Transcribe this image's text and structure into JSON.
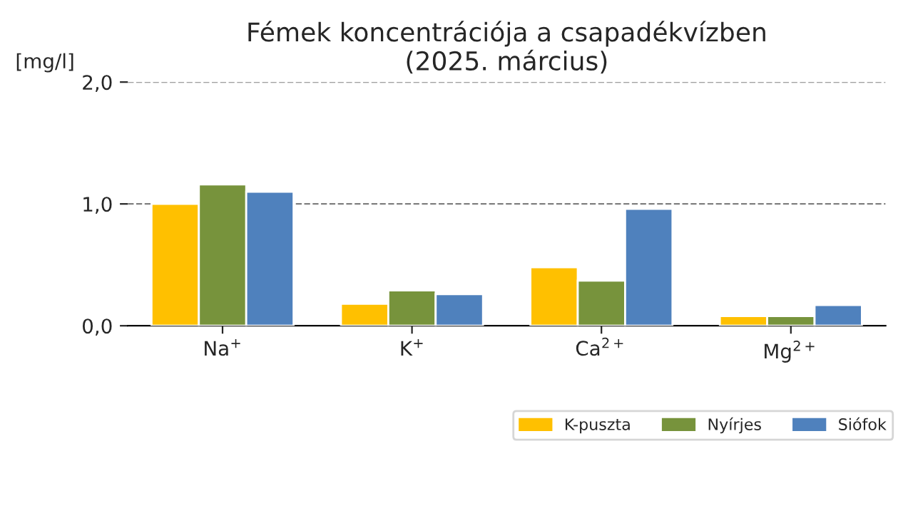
{
  "chart_data": {
    "type": "bar",
    "title": "Fémek koncentrációja a csapadékvízben\n(2025. március)",
    "ylabel": "[mg/l]",
    "categories": [
      "Na$^{+}$",
      "K$^{+}$",
      "Ca$^{2+}$",
      "Mg$^{2+}$"
    ],
    "series": [
      {
        "name": "K-puszta",
        "color": "#ffc000",
        "values": [
          1.0,
          0.18,
          0.48,
          0.08
        ]
      },
      {
        "name": "Nyírjes",
        "color": "#77933c",
        "values": [
          1.16,
          0.29,
          0.37,
          0.08
        ]
      },
      {
        "name": "Siófok",
        "color": "#4f81bd",
        "values": [
          1.1,
          0.26,
          0.96,
          0.17
        ]
      }
    ],
    "ylim": [
      0,
      2
    ],
    "yticks": [
      {
        "value": 0,
        "label": "0,0"
      },
      {
        "value": 1,
        "label": "1,0"
      },
      {
        "value": 2,
        "label": "2,0"
      }
    ],
    "grid": "y",
    "legend": "bottom right"
  }
}
